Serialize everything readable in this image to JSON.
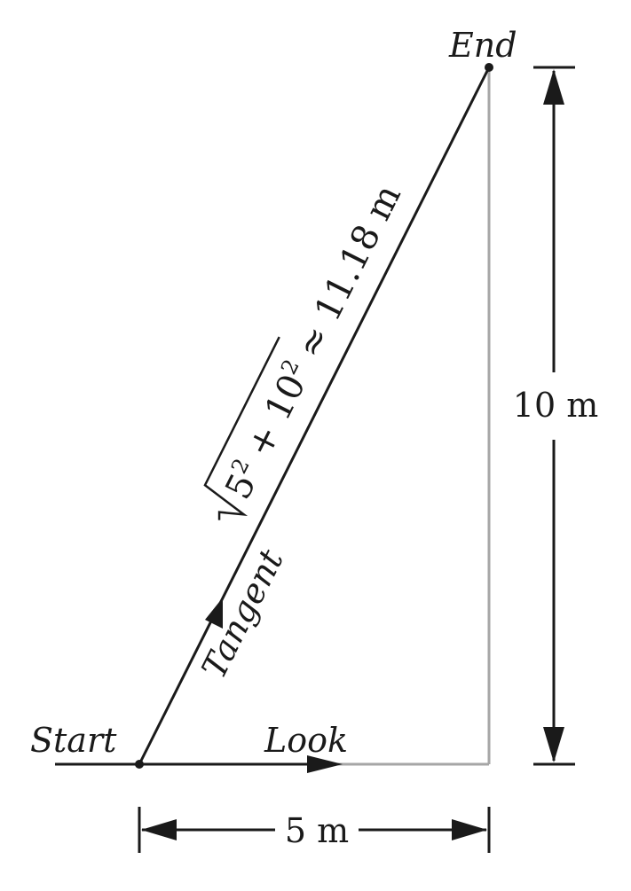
{
  "labels": {
    "start": "Start",
    "end": "End",
    "look": "Look",
    "tangent": "Tangent",
    "height": "10 m",
    "width": "5 m"
  },
  "formula": {
    "term1_base": "5",
    "term1_exp": "2",
    "plus": " + ",
    "term2_base": "10",
    "term2_exp": "2",
    "result": " ≈ 11.18 m"
  },
  "colors": {
    "ink": "#1a1a1a",
    "construction": "#a6a6a6"
  }
}
